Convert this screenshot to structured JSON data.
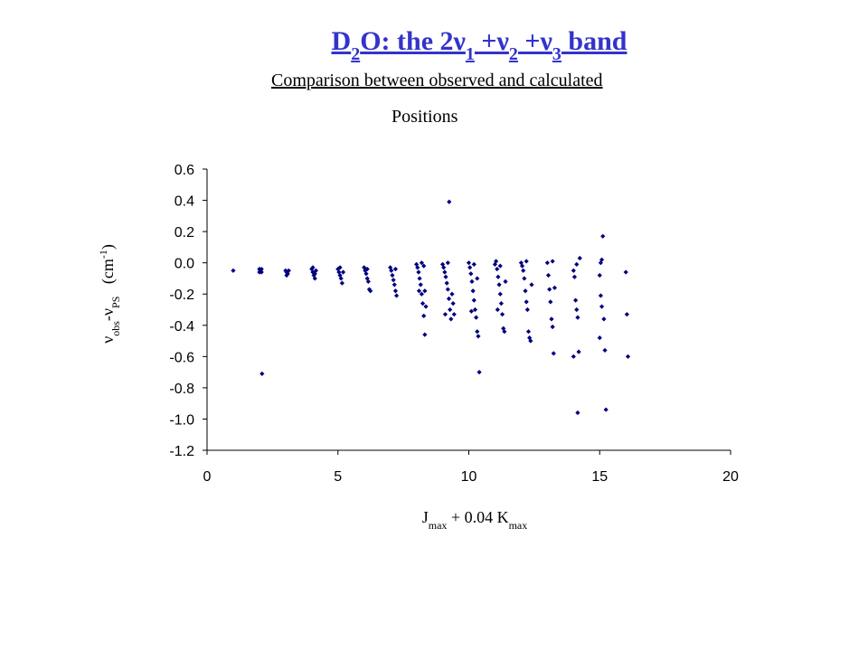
{
  "chart_data": {
    "type": "scatter",
    "title": [
      "D",
      {
        "text": "2",
        "script": "sub"
      },
      "O: the 2ν",
      {
        "text": "1",
        "script": "sub"
      },
      " +ν",
      {
        "text": "2",
        "script": "sub"
      },
      " +ν",
      {
        "text": "3",
        "script": "sub"
      },
      " band"
    ],
    "subtitle": "Comparison between observed and calculated",
    "subtitle2": "Positions",
    "y_label": [
      "ν",
      {
        "text": "obs",
        "script": "sub"
      },
      "-ν",
      {
        "text": "PS",
        "script": "sub"
      },
      "   (cm",
      {
        "text": "-1",
        "script": "super"
      },
      ")"
    ],
    "x_label": [
      "J",
      {
        "text": "max",
        "script": "sub"
      },
      " + 0.04 K",
      {
        "text": "max",
        "script": "sub"
      }
    ],
    "color": "#000080",
    "x": [
      1.0,
      2.0,
      2.04,
      2.08,
      2.0,
      2.08,
      2.1,
      3.0,
      3.04,
      3.08,
      3.12,
      3.04,
      4.0,
      4.04,
      4.08,
      4.12,
      4.04,
      4.16,
      4.12,
      5.0,
      5.04,
      5.08,
      5.12,
      5.16,
      5.2,
      5.08,
      6.0,
      6.04,
      6.08,
      6.12,
      6.16,
      6.2,
      6.24,
      6.12,
      7.0,
      7.04,
      7.08,
      7.12,
      7.16,
      7.2,
      7.24,
      7.2,
      8.0,
      8.04,
      8.08,
      8.12,
      8.16,
      8.2,
      8.24,
      8.28,
      8.32,
      8.2,
      8.28,
      8.32,
      8.36,
      8.1,
      9.0,
      9.04,
      9.08,
      9.12,
      9.16,
      9.2,
      9.24,
      9.28,
      9.32,
      9.25,
      9.1,
      9.2,
      9.36,
      9.4,
      9.44,
      10.0,
      10.04,
      10.08,
      10.12,
      10.16,
      10.2,
      10.24,
      10.28,
      10.32,
      10.36,
      10.4,
      10.2,
      10.32,
      10.1,
      11.0,
      11.04,
      11.08,
      11.12,
      11.16,
      11.2,
      11.24,
      11.28,
      11.32,
      11.36,
      11.1,
      11.2,
      11.4,
      12.0,
      12.04,
      12.08,
      12.12,
      12.16,
      12.2,
      12.24,
      12.28,
      12.32,
      12.36,
      12.2,
      12.4,
      13.0,
      13.04,
      13.08,
      13.12,
      13.16,
      13.2,
      13.24,
      13.2,
      13.28,
      14.0,
      14.04,
      14.08,
      14.12,
      14.16,
      14.2,
      14.0,
      14.24,
      14.16,
      14.12,
      15.0,
      15.04,
      15.08,
      15.12,
      15.16,
      15.0,
      15.2,
      15.24,
      15.08,
      15.04,
      16.0,
      16.04,
      16.08
    ],
    "values": [
      -0.05,
      -0.04,
      -0.05,
      -0.06,
      -0.06,
      -0.04,
      -0.71,
      -0.05,
      -0.06,
      -0.07,
      -0.05,
      -0.08,
      -0.04,
      -0.06,
      -0.08,
      -0.1,
      -0.03,
      -0.05,
      -0.07,
      -0.04,
      -0.06,
      -0.08,
      -0.1,
      -0.13,
      -0.06,
      -0.03,
      -0.03,
      -0.05,
      -0.07,
      -0.1,
      -0.12,
      -0.17,
      -0.18,
      -0.04,
      -0.03,
      -0.05,
      -0.08,
      -0.11,
      -0.14,
      -0.18,
      -0.21,
      -0.04,
      -0.01,
      -0.03,
      -0.06,
      -0.1,
      -0.14,
      -0.2,
      -0.26,
      -0.34,
      -0.46,
      0.0,
      -0.02,
      -0.18,
      -0.28,
      -0.18,
      -0.01,
      -0.03,
      -0.06,
      -0.09,
      -0.13,
      -0.17,
      -0.23,
      -0.3,
      -0.36,
      0.39,
      -0.33,
      0.0,
      -0.2,
      -0.26,
      -0.33,
      0.0,
      -0.03,
      -0.07,
      -0.12,
      -0.18,
      -0.24,
      -0.3,
      -0.35,
      -0.44,
      -0.47,
      -0.7,
      -0.01,
      -0.1,
      -0.31,
      -0.01,
      0.01,
      -0.04,
      -0.09,
      -0.14,
      -0.2,
      -0.26,
      -0.33,
      -0.42,
      -0.44,
      -0.3,
      -0.02,
      -0.12,
      0.0,
      -0.02,
      -0.05,
      -0.1,
      -0.18,
      -0.25,
      -0.3,
      -0.44,
      -0.48,
      -0.5,
      0.01,
      -0.14,
      0.0,
      -0.08,
      -0.17,
      -0.25,
      -0.36,
      -0.41,
      -0.58,
      0.01,
      -0.16,
      -0.05,
      -0.09,
      -0.24,
      -0.3,
      -0.35,
      -0.57,
      -0.6,
      0.03,
      -0.96,
      -0.01,
      -0.08,
      0.0,
      -0.28,
      0.17,
      -0.36,
      -0.48,
      -0.56,
      -0.94,
      0.02,
      -0.21,
      -0.06,
      -0.33,
      -0.6
    ],
    "xlim": [
      0,
      20
    ],
    "xticks": [
      0,
      5,
      10,
      15,
      20
    ],
    "ylim": [
      -1.2,
      0.6
    ],
    "yticks": [
      0.6,
      0.4,
      0.2,
      {
        "value": 0,
        "label": "0.0"
      },
      -0.2,
      -0.4,
      -0.6,
      -0.8,
      {
        "value": -1,
        "label": "-1.0"
      },
      -1.2
    ],
    "grid": false
  }
}
